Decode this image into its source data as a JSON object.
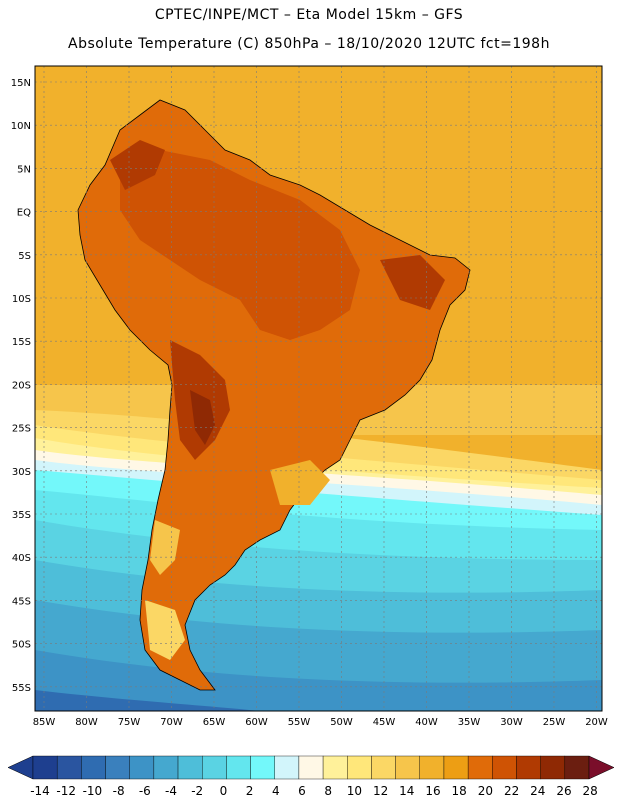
{
  "header": {
    "title_line1": "CPTEC/INPE/MCT –  Eta Model 15km – GFS",
    "title_line2": "Absolute Temperature (C) 850hPa – 18/10/2020 12UTC fct=198h"
  },
  "map": {
    "lat_ticks": [
      "15N",
      "10N",
      "5N",
      "EQ",
      "5S",
      "10S",
      "15S",
      "20S",
      "25S",
      "30S",
      "35S",
      "40S",
      "45S",
      "50S",
      "55S"
    ],
    "lon_ticks": [
      "85W",
      "80W",
      "75W",
      "70W",
      "65W",
      "60W",
      "55W",
      "50W",
      "45W",
      "40W",
      "35W",
      "30W",
      "25W",
      "20W"
    ]
  },
  "colorbar": {
    "labels": [
      "-14",
      "-12",
      "-10",
      "-8",
      "-6",
      "-4",
      "-2",
      "0",
      "2",
      "4",
      "6",
      "8",
      "10",
      "12",
      "14",
      "16",
      "18",
      "20",
      "22",
      "24",
      "26",
      "28"
    ],
    "colors": [
      "#1e3f8f",
      "#2a55a0",
      "#2f6cb1",
      "#3a80bd",
      "#3d93c6",
      "#45a8cf",
      "#4ebed9",
      "#5ad3e3",
      "#63e6ee",
      "#73f8fa",
      "#d2f5fb",
      "#fff8e6",
      "#fff19a",
      "#ffe77a",
      "#fbd765",
      "#f6c54b",
      "#f1b12c",
      "#ed9e14",
      "#e06b09",
      "#cf5304",
      "#b03a02",
      "#8f2904",
      "#6b1e10",
      "#7a0e2a"
    ],
    "under_color": "#1e3f8f",
    "over_color": "#7a0e2a"
  }
}
